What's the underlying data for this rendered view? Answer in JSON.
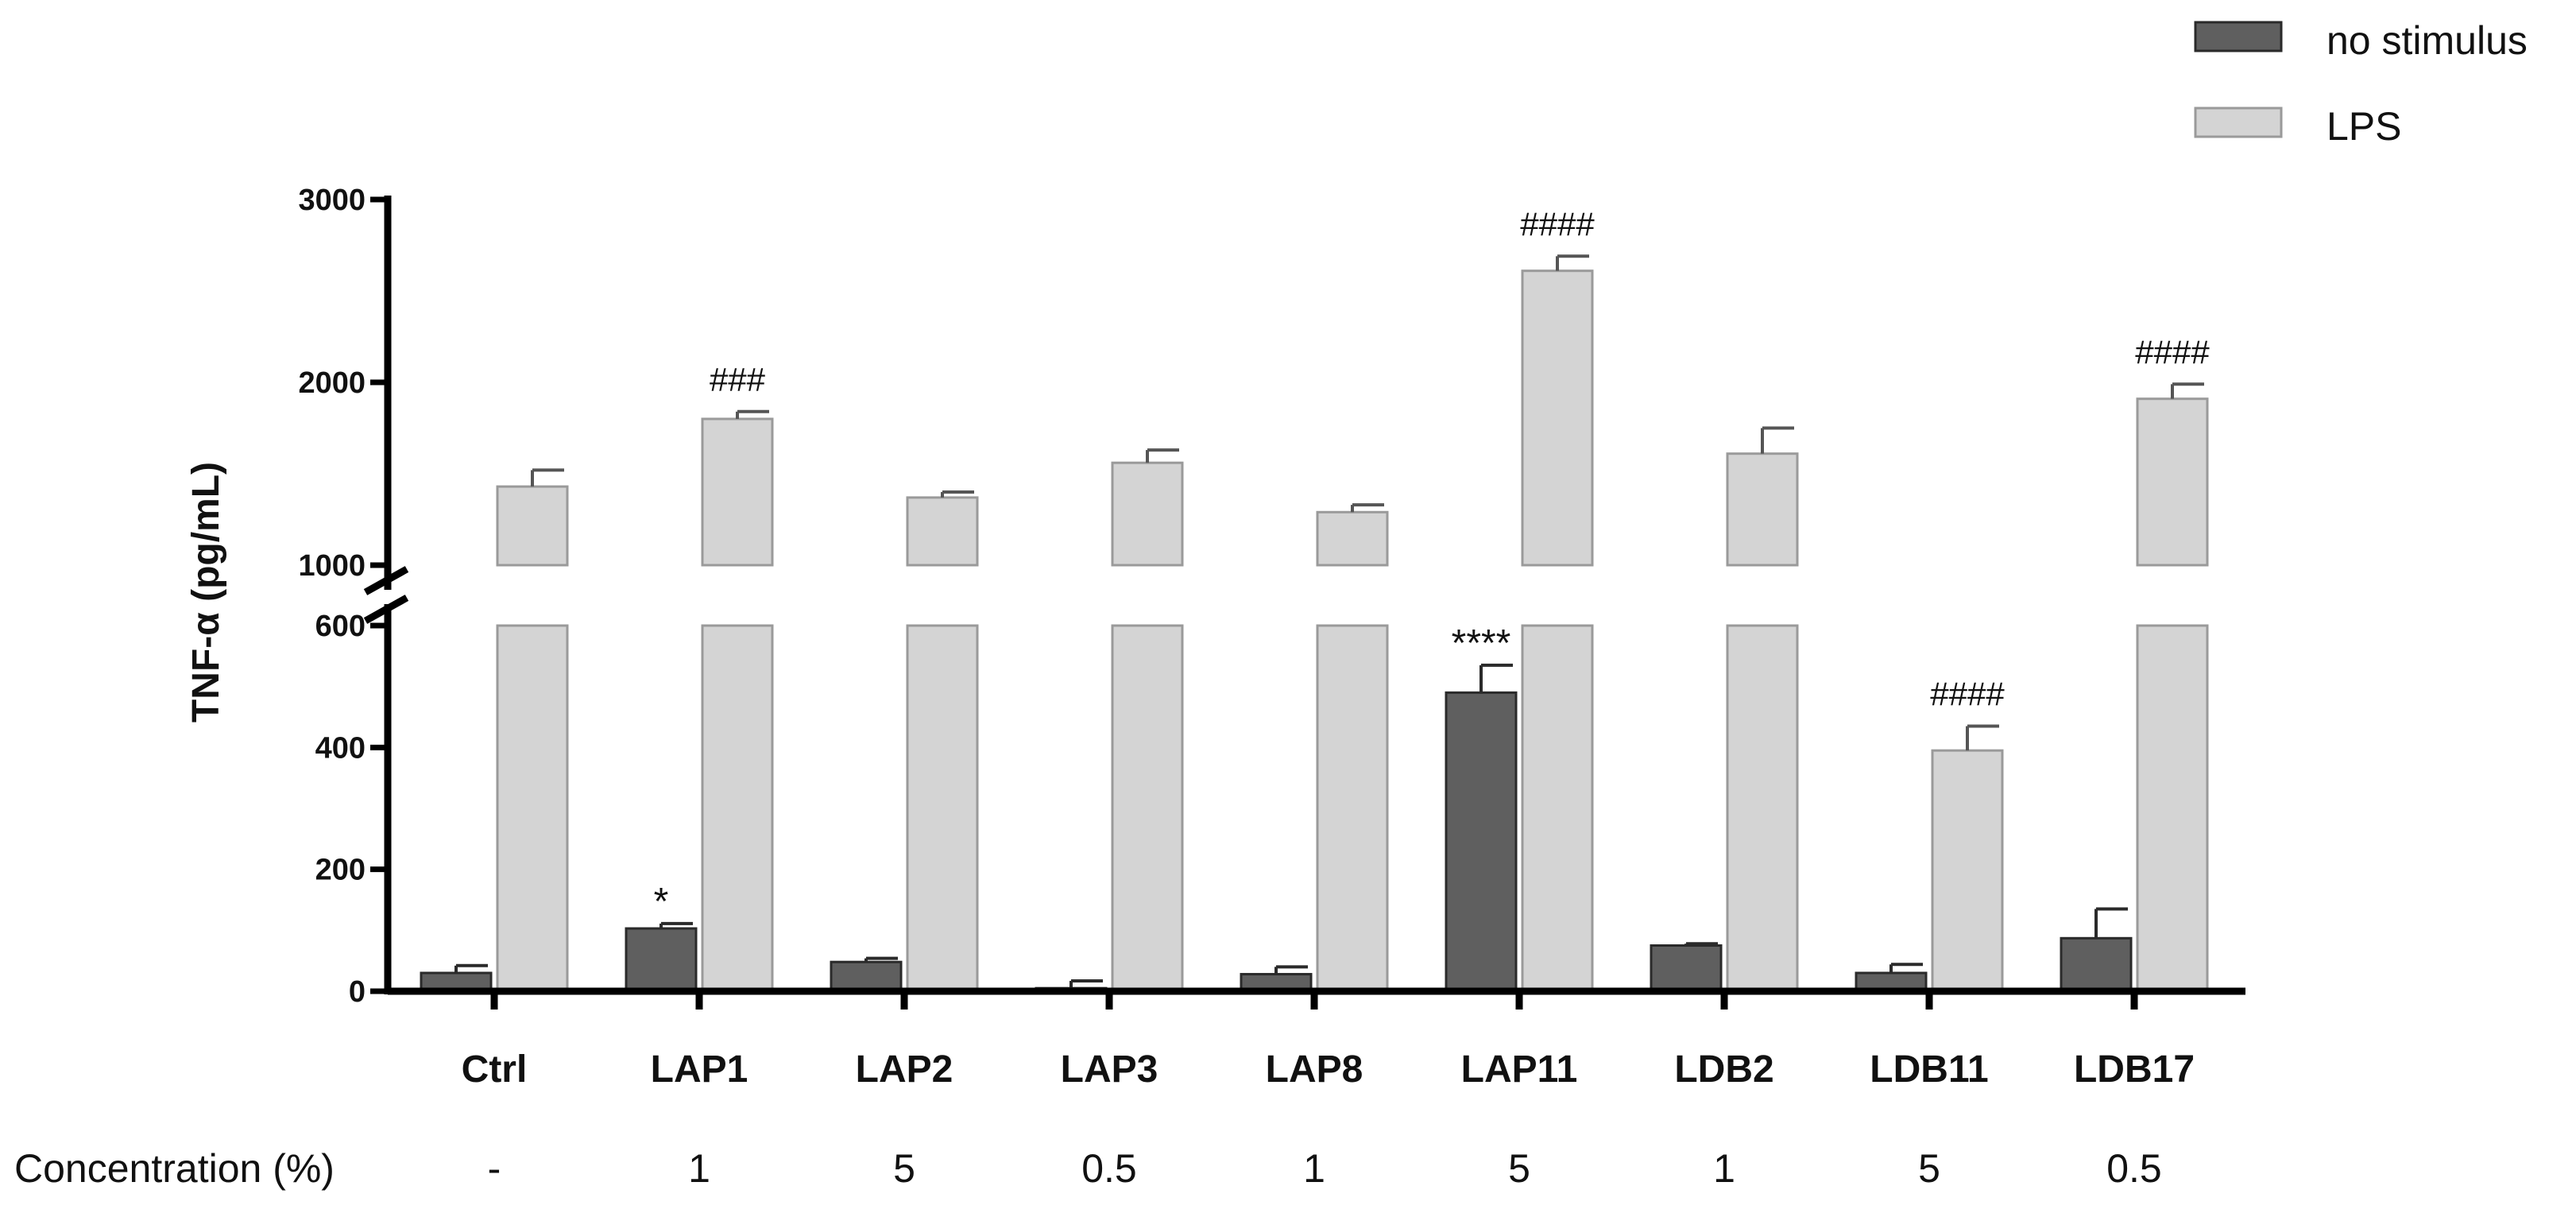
{
  "chart_data": {
    "type": "bar",
    "ylabel": "TNF-α (pg/mL)",
    "y_axis_segments": [
      {
        "range": [
          0,
          600
        ],
        "ticks": [
          0,
          200,
          400,
          600
        ]
      },
      {
        "range": [
          1000,
          3000
        ],
        "ticks": [
          1000,
          2000,
          3000
        ]
      }
    ],
    "categories": [
      "Ctrl",
      "LAP1",
      "LAP2",
      "LAP3",
      "LAP8",
      "LAP11",
      "LDB2",
      "LDB11",
      "LDB17"
    ],
    "concentration_label": "Concentration (%)",
    "concentrations": [
      "-",
      "1",
      "5",
      "0.5",
      "1",
      "5",
      "1",
      "5",
      "0.5"
    ],
    "series": [
      {
        "name": "no stimulus",
        "color": "#5f5f5f",
        "values": [
          30,
          103,
          48,
          5,
          28,
          490,
          75,
          30,
          87
        ],
        "errors": [
          12,
          8,
          6,
          12,
          12,
          45,
          3,
          14,
          48
        ],
        "annotations": [
          "",
          "*",
          "",
          "",
          "",
          "****",
          "",
          "",
          ""
        ]
      },
      {
        "name": "LPS",
        "color": "#d4d4d4",
        "values": [
          1430,
          1800,
          1370,
          1560,
          1290,
          2610,
          1610,
          395,
          1910
        ],
        "errors": [
          90,
          40,
          30,
          70,
          40,
          80,
          140,
          40,
          80
        ],
        "annotations": [
          "",
          "###",
          "",
          "",
          "",
          "####",
          "",
          "####",
          "####"
        ]
      }
    ]
  }
}
